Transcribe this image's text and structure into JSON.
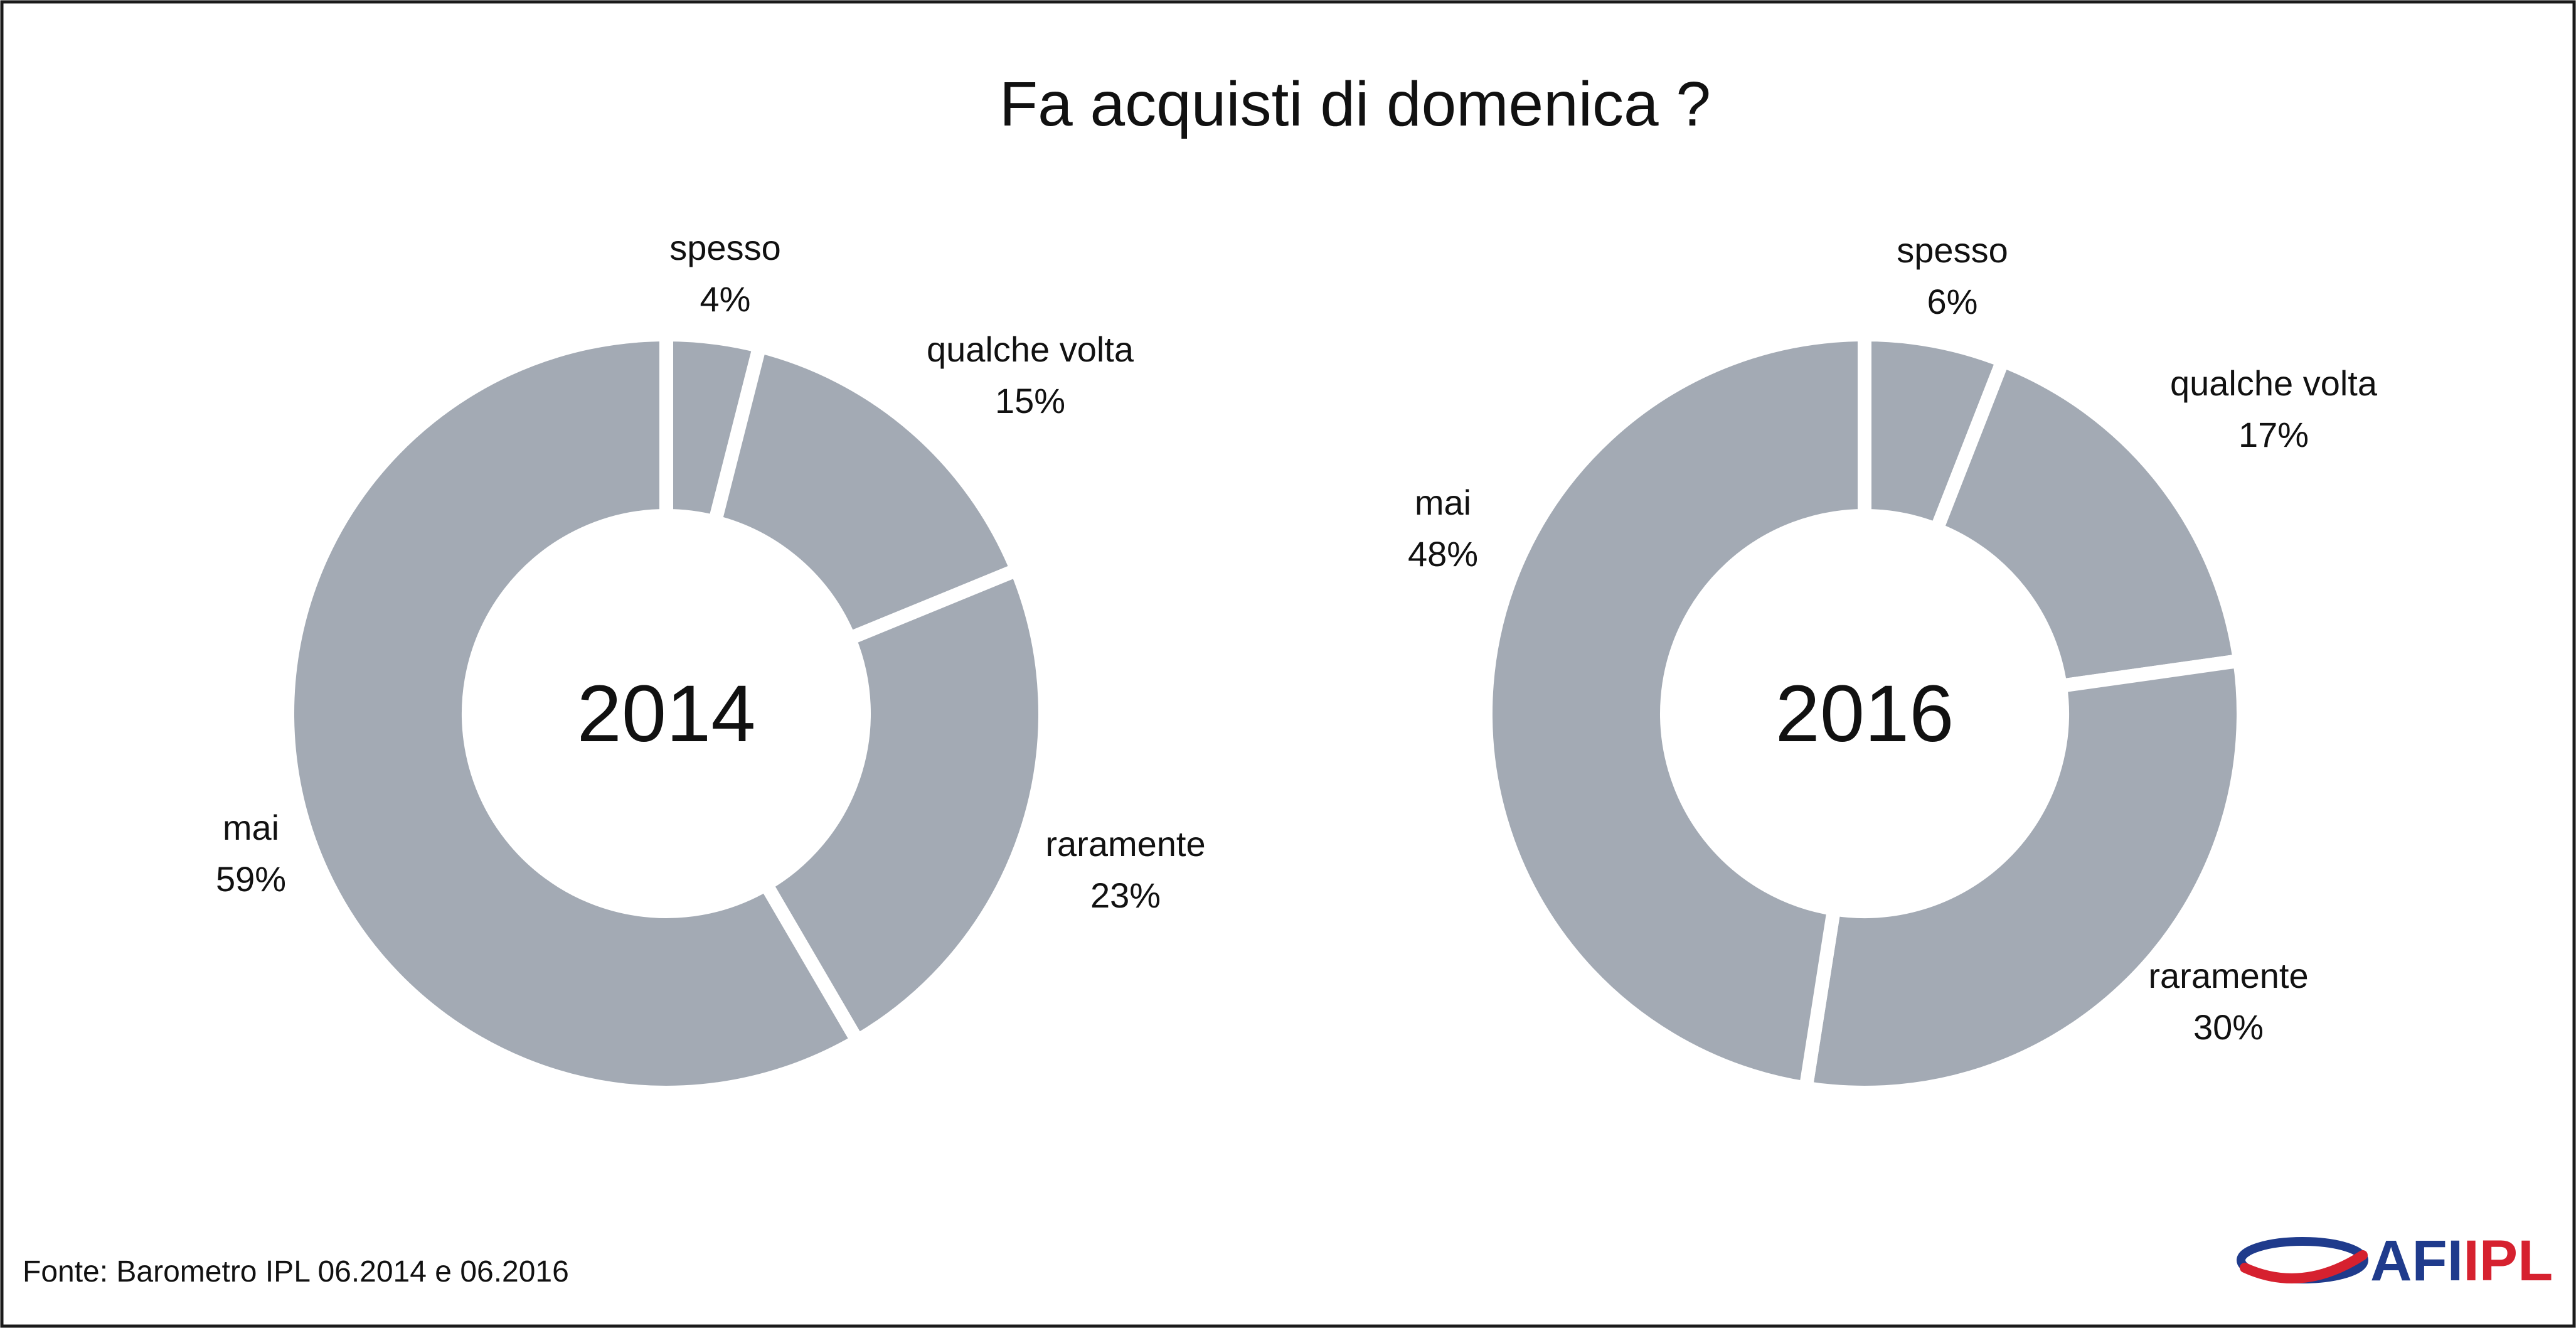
{
  "chart_data": [
    {
      "type": "pie",
      "variant": "donut",
      "title": "Fa acquisti di domenica ?",
      "center_label": "2014",
      "color": "#a3aab4",
      "slices": [
        {
          "label": "spesso",
          "value": 4,
          "display": "4%"
        },
        {
          "label": "qualche volta",
          "value": 15,
          "display": "15%"
        },
        {
          "label": "raramente",
          "value": 23,
          "display": "23%"
        },
        {
          "label": "mai",
          "value": 59,
          "display": "59%"
        }
      ]
    },
    {
      "type": "pie",
      "variant": "donut",
      "center_label": "2016",
      "color": "#a3aab4",
      "slices": [
        {
          "label": "spesso",
          "value": 6,
          "display": "6%"
        },
        {
          "label": "qualche volta",
          "value": 17,
          "display": "17%"
        },
        {
          "label": "raramente",
          "value": 30,
          "display": "30%"
        },
        {
          "label": "mai",
          "value": 48,
          "display": "48%"
        }
      ]
    }
  ],
  "footer": {
    "source": "Fonte: Barometro IPL 06.2014 e 06.2016"
  },
  "logo": {
    "text_afi": "AFI",
    "text_ipl": "IPL",
    "color_blue": "#1f3b8c",
    "color_red": "#d6212f"
  }
}
